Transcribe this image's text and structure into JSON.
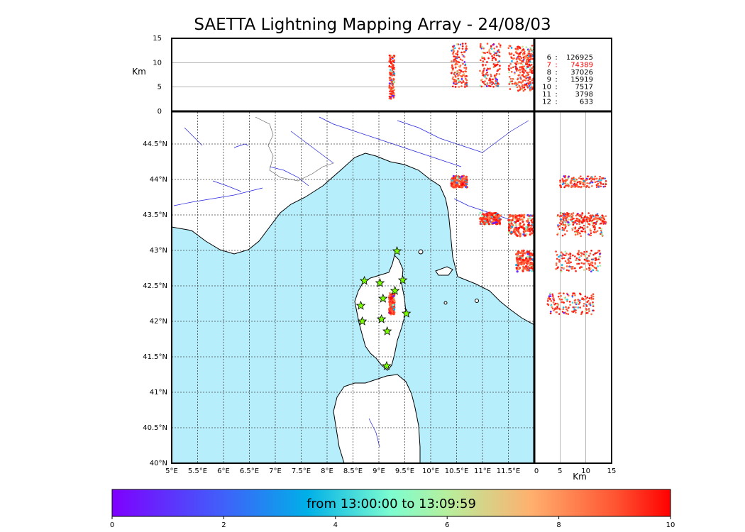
{
  "title": "SAETTA Lightning Mapping Array - 24/08/03",
  "chart_data": {
    "type": "scatter",
    "title": "SAETTA Lightning Mapping Array - 24/08/03",
    "time_range_label": "from 13:00:00 to 13:09:59",
    "map": {
      "xlim": [
        5.0,
        12.0
      ],
      "ylim": [
        40.0,
        44.95
      ],
      "x_ticks": [
        "5°E",
        "5.5°E",
        "6°E",
        "6.5°E",
        "7°E",
        "7.5°E",
        "8°E",
        "8.5°E",
        "9°E",
        "9.5°E",
        "10°E",
        "10.5°E",
        "11°E",
        "11.5°E"
      ],
      "x_tick_values": [
        5,
        5.5,
        6,
        6.5,
        7,
        7.5,
        8,
        8.5,
        9,
        9.5,
        10,
        10.5,
        11,
        11.5
      ],
      "y_ticks": [
        "40°N",
        "40.5°N",
        "41°N",
        "41.5°N",
        "42°N",
        "42.5°N",
        "43°N",
        "43.5°N",
        "44°N",
        "44.5°N"
      ],
      "y_tick_values": [
        40,
        40.5,
        41,
        41.5,
        42,
        42.5,
        43,
        43.5,
        44,
        44.5
      ],
      "grid": true
    },
    "altitude_lon": {
      "ylabel": "Km",
      "ylim": [
        0,
        15
      ],
      "y_ticks": [
        "0",
        "5",
        "10",
        "15"
      ],
      "y_tick_values": [
        0,
        5,
        10,
        15
      ]
    },
    "altitude_lat": {
      "xlabel": "Km",
      "xlim": [
        0,
        15
      ],
      "x_ticks": [
        "0",
        "5",
        "10",
        "15"
      ],
      "x_tick_values": [
        0,
        5,
        10,
        15
      ]
    },
    "station_counts": [
      {
        "stations": "6",
        "count": "126925",
        "highlight": false
      },
      {
        "stations": "7",
        "count": "74389",
        "highlight": true
      },
      {
        "stations": "8",
        "count": "37026",
        "highlight": false
      },
      {
        "stations": "9",
        "count": "15919",
        "highlight": false
      },
      {
        "stations": "10",
        "count": "7517",
        "highlight": false
      },
      {
        "stations": "11",
        "count": "3798",
        "highlight": false
      },
      {
        "stations": "12",
        "count": "633",
        "highlight": false
      }
    ],
    "stations": [
      {
        "lon": 9.35,
        "lat": 42.99
      },
      {
        "lon": 8.72,
        "lat": 42.57
      },
      {
        "lon": 9.02,
        "lat": 42.54
      },
      {
        "lon": 9.46,
        "lat": 42.58
      },
      {
        "lon": 9.31,
        "lat": 42.43
      },
      {
        "lon": 9.08,
        "lat": 42.32
      },
      {
        "lon": 8.65,
        "lat": 42.22
      },
      {
        "lon": 9.53,
        "lat": 42.11
      },
      {
        "lon": 8.68,
        "lat": 42.0
      },
      {
        "lon": 9.05,
        "lat": 42.03
      },
      {
        "lon": 9.16,
        "lat": 41.86
      },
      {
        "lon": 9.15,
        "lat": 41.37
      }
    ],
    "lightning_clusters": [
      {
        "lon": 10.55,
        "lat": 43.97,
        "alt": 9.5,
        "spread_lon": 0.15,
        "spread_lat": 0.08
      },
      {
        "lon": 11.15,
        "lat": 43.45,
        "alt": 9.5,
        "spread_lon": 0.2,
        "spread_lat": 0.08
      },
      {
        "lon": 11.75,
        "lat": 43.35,
        "alt": 9.0,
        "spread_lon": 0.25,
        "spread_lat": 0.15
      },
      {
        "lon": 11.85,
        "lat": 42.85,
        "alt": 8.5,
        "spread_lon": 0.2,
        "spread_lat": 0.15
      },
      {
        "lon": 9.25,
        "lat": 42.25,
        "alt": 7.0,
        "spread_lon": 0.05,
        "spread_lat": 0.15
      }
    ],
    "colorbar": {
      "min": 0,
      "max": 10,
      "ticks": [
        "0",
        "2",
        "4",
        "6",
        "8",
        "10"
      ],
      "tick_values": [
        0,
        2,
        4,
        6,
        8,
        10
      ]
    }
  }
}
